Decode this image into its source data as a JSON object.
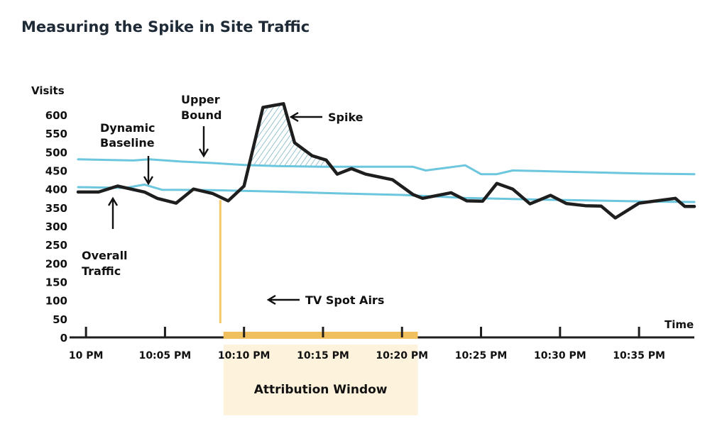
{
  "title": "Measuring the Spike in Site Traffic",
  "colors": {
    "overall": "#1e1e1e",
    "bounds": "#6cc6dd",
    "tv_spot": "#f3c96a",
    "window_bar": "#f0bf5e",
    "window_bg": "#fdf2dc",
    "hatch": "#6aa9bd"
  },
  "annotations": {
    "upper_bound": [
      "Upper",
      "Bound"
    ],
    "dynamic_baseline": [
      "Dynamic",
      "Baseline"
    ],
    "spike": "Spike",
    "overall_traffic": [
      "Overall",
      "Traffic"
    ],
    "tv_spot": "TV Spot Airs",
    "attribution_window": "Attribution Window"
  },
  "chart_data": {
    "type": "line",
    "title": "Measuring the Spike in Site Traffic",
    "xlabel": "Time",
    "ylabel": "Visits",
    "y_ticks": [
      0,
      50,
      100,
      150,
      200,
      250,
      300,
      350,
      400,
      450,
      500,
      550,
      600
    ],
    "ylim": [
      0,
      600
    ],
    "x_ticks": [
      "10 PM",
      "10:05 PM",
      "10:10 PM",
      "10:15 PM",
      "10:20 PM",
      "10:25 PM",
      "10:30 PM",
      "10:35 PM"
    ],
    "x_unit": "minutes after 10 PM",
    "xlim": [
      -0.5,
      38.5
    ],
    "tv_spot_minute": 8.5,
    "attribution_window_minutes": [
      8.7,
      21.0
    ],
    "series": [
      {
        "name": "Overall Traffic",
        "x": [
          -0.5,
          0.8,
          2.0,
          3.7,
          4.5,
          5.7,
          6.8,
          8.0,
          9.0,
          10.0,
          11.2,
          12.5,
          13.2,
          14.3,
          15.2,
          15.9,
          16.8,
          17.7,
          19.4,
          20.7,
          21.3,
          23.1,
          24.1,
          25.1,
          26.0,
          27.0,
          28.1,
          29.4,
          30.4,
          31.6,
          32.6,
          33.5,
          35.0,
          37.3,
          37.9,
          38.5
        ],
        "y": [
          392,
          392,
          408,
          392,
          375,
          362,
          400,
          388,
          368,
          408,
          620,
          630,
          525,
          490,
          478,
          440,
          455,
          440,
          425,
          385,
          375,
          390,
          368,
          367,
          415,
          400,
          360,
          383,
          361,
          355,
          354,
          322,
          362,
          375,
          353,
          353
        ]
      },
      {
        "name": "Upper Bound",
        "x": [
          -0.5,
          3.0,
          4.0,
          6.0,
          8.0,
          10.0,
          12.0,
          15.0,
          18.0,
          20.7,
          21.5,
          24.0,
          25.0,
          26.0,
          27.0,
          29.0,
          31.0,
          33.0,
          35.0,
          38.5
        ],
        "y": [
          480,
          477,
          480,
          474,
          470,
          465,
          462,
          460,
          460,
          460,
          450,
          464,
          440,
          440,
          450,
          448,
          446,
          444,
          442,
          440
        ]
      },
      {
        "name": "Dynamic Baseline",
        "x": [
          -0.5,
          2.5,
          3.7,
          4.8,
          8.0,
          12.0,
          16.0,
          20.0,
          24.0,
          28.0,
          32.0,
          36.0,
          38.5
        ],
        "y": [
          405,
          403,
          412,
          398,
          397,
          393,
          388,
          384,
          376,
          372,
          369,
          366,
          365
        ]
      }
    ]
  }
}
